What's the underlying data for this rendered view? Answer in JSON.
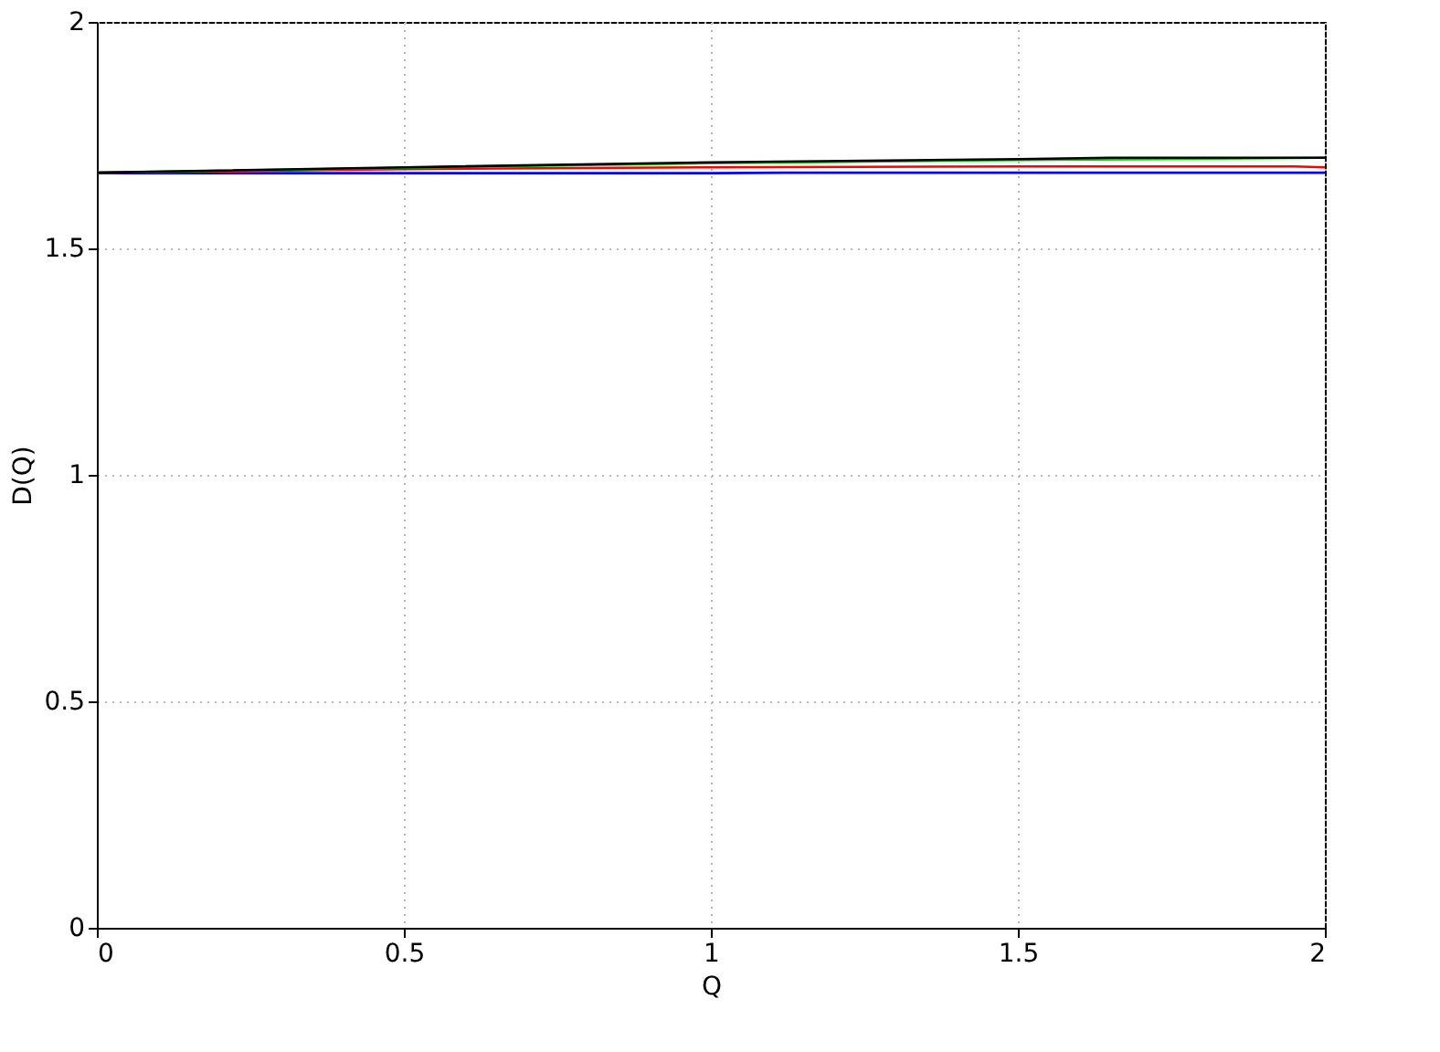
{
  "chart_data": {
    "type": "line",
    "xlabel": "Q",
    "ylabel": "D(Q)",
    "xlim": [
      0,
      2
    ],
    "ylim": [
      0,
      2
    ],
    "xticks": [
      0,
      0.5,
      1,
      1.5,
      2
    ],
    "yticks": [
      0,
      0.5,
      1,
      1.5,
      2
    ],
    "grid": true,
    "legend": false,
    "series": [
      {
        "color": "#0000ff",
        "x": [
          0,
          0.5,
          1,
          1.12,
          1.5,
          2
        ],
        "values": [
          1.666,
          1.666,
          1.666,
          1.667,
          1.667,
          1.667
        ]
      },
      {
        "color": "#ff0000",
        "x": [
          0,
          0.5,
          1,
          1.5,
          1.95,
          2
        ],
        "values": [
          1.667,
          1.675,
          1.679,
          1.681,
          1.681,
          1.679
        ]
      },
      {
        "color": "#00cc00",
        "x": [
          0,
          0.5,
          1,
          1.5,
          2
        ],
        "values": [
          1.667,
          1.678,
          1.688,
          1.695,
          1.7
        ]
      },
      {
        "color": "#000000",
        "x": [
          0,
          0.5,
          1,
          1.5,
          1.65,
          2
        ],
        "values": [
          1.667,
          1.679,
          1.69,
          1.697,
          1.7,
          1.7
        ]
      }
    ]
  }
}
